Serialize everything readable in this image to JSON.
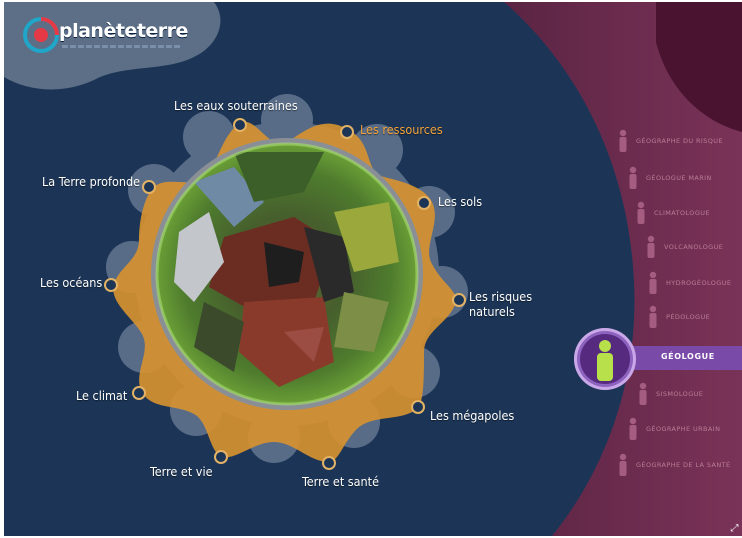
{
  "logo": {
    "text": "planèteterre"
  },
  "themes": [
    {
      "id": "eaux",
      "label": "Les eaux souterraines",
      "active": false
    },
    {
      "id": "ressources",
      "label": "Les ressources",
      "active": true
    },
    {
      "id": "sols",
      "label": "Les sols",
      "active": false
    },
    {
      "id": "risques",
      "label": "Les risques naturels",
      "active": false
    },
    {
      "id": "megapoles",
      "label": "Les mégapoles",
      "active": false
    },
    {
      "id": "sante",
      "label": "Terre et santé",
      "active": false
    },
    {
      "id": "vie",
      "label": "Terre et vie",
      "active": false
    },
    {
      "id": "climat",
      "label": "Le climat",
      "active": false
    },
    {
      "id": "oceans",
      "label": "Les océans",
      "active": false
    },
    {
      "id": "profonde",
      "label": "La Terre profonde",
      "active": false
    }
  ],
  "professions": {
    "above": [
      "GÉOGRAPHE DU RISQUE",
      "GÉOLOGUE MARIN",
      "CLIMATOLOGUE",
      "VOLCANOLOGUE",
      "HYDROGÉOLOGUE",
      "PÉDOLOGUE"
    ],
    "selected": "GÉOLOGUE",
    "below": [
      "SISMOLOGUE",
      "GÉOGRAPHE URBAIN",
      "GÉOGRAPHE DE LA SANTÉ"
    ]
  },
  "colors": {
    "background": "#1c3556",
    "active_theme": "#f2a23b",
    "ring": "#d9932f",
    "right_panel": "#6e2a4f",
    "selected_profession": "#7a4aa8"
  }
}
